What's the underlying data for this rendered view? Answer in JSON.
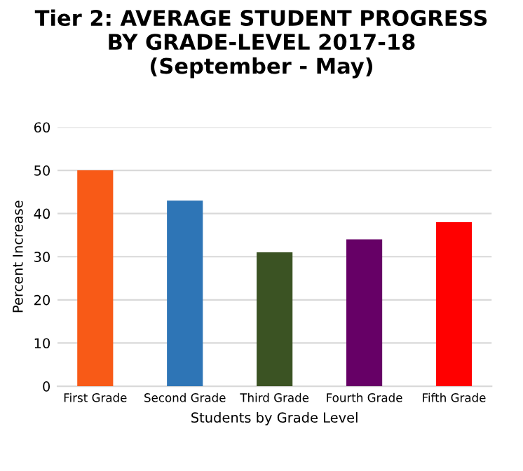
{
  "chart_data": {
    "type": "bar",
    "title": "Tier 2: AVERAGE STUDENT PROGRESS\nBY GRADE-LEVEL 2017-18\n(September - May)",
    "xlabel": "Students by Grade Level",
    "ylabel": "Percent Increase",
    "categories": [
      "First Grade",
      "Second Grade",
      "Third Grade",
      "Fourth Grade",
      "Fifth Grade"
    ],
    "values": [
      50,
      43,
      31,
      34,
      38
    ],
    "colors": [
      "#f85a17",
      "#2e75b6",
      "#3b5323",
      "#660066",
      "#ff0000"
    ],
    "ylim": [
      0,
      60
    ],
    "yticks": [
      0,
      10,
      20,
      30,
      40,
      50,
      60
    ],
    "grid": "y",
    "legend": false
  }
}
